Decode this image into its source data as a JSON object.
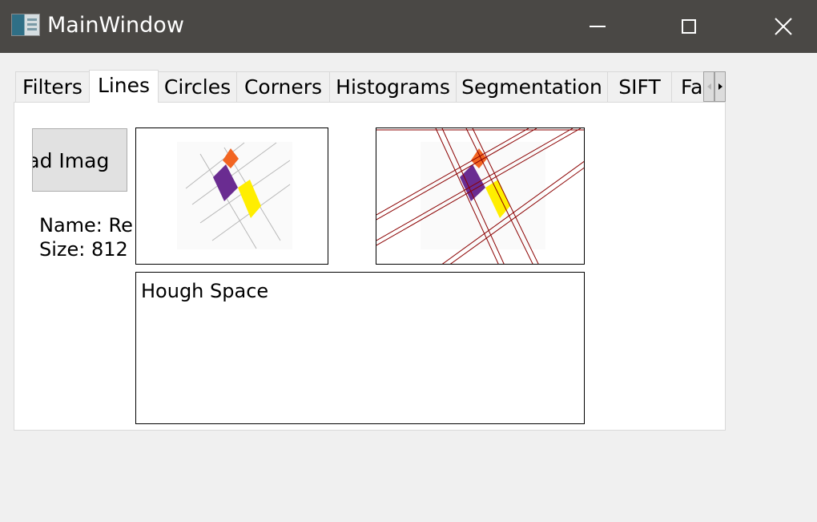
{
  "window": {
    "title": "MainWindow",
    "icon": "app-window-icon",
    "controls": [
      "minimize-icon",
      "maximize-icon",
      "close-icon"
    ]
  },
  "tabs": [
    {
      "label": "Filters",
      "active": false
    },
    {
      "label": "Lines",
      "active": true
    },
    {
      "label": "Circles",
      "active": false
    },
    {
      "label": "Corners",
      "active": false
    },
    {
      "label": "Histograms",
      "active": false
    },
    {
      "label": "Segmentation",
      "active": false
    },
    {
      "label": "SIFT",
      "active": false
    },
    {
      "label": "Fa",
      "active": false
    }
  ],
  "lines_tab": {
    "load_button_label": "oad Imag",
    "name_text": "Name:  Re",
    "size_text": "Size: 812 :",
    "hough_space_label": "Hough Space"
  },
  "colors": {
    "titlebar": "#4a4845",
    "window_bg": "#f0f0f0",
    "panel_bg": "#ffffff",
    "shape_orange": "#f26522",
    "shape_purple": "#6a2c91",
    "shape_yellow": "#ffee00",
    "detected_line": "#8b0000"
  }
}
